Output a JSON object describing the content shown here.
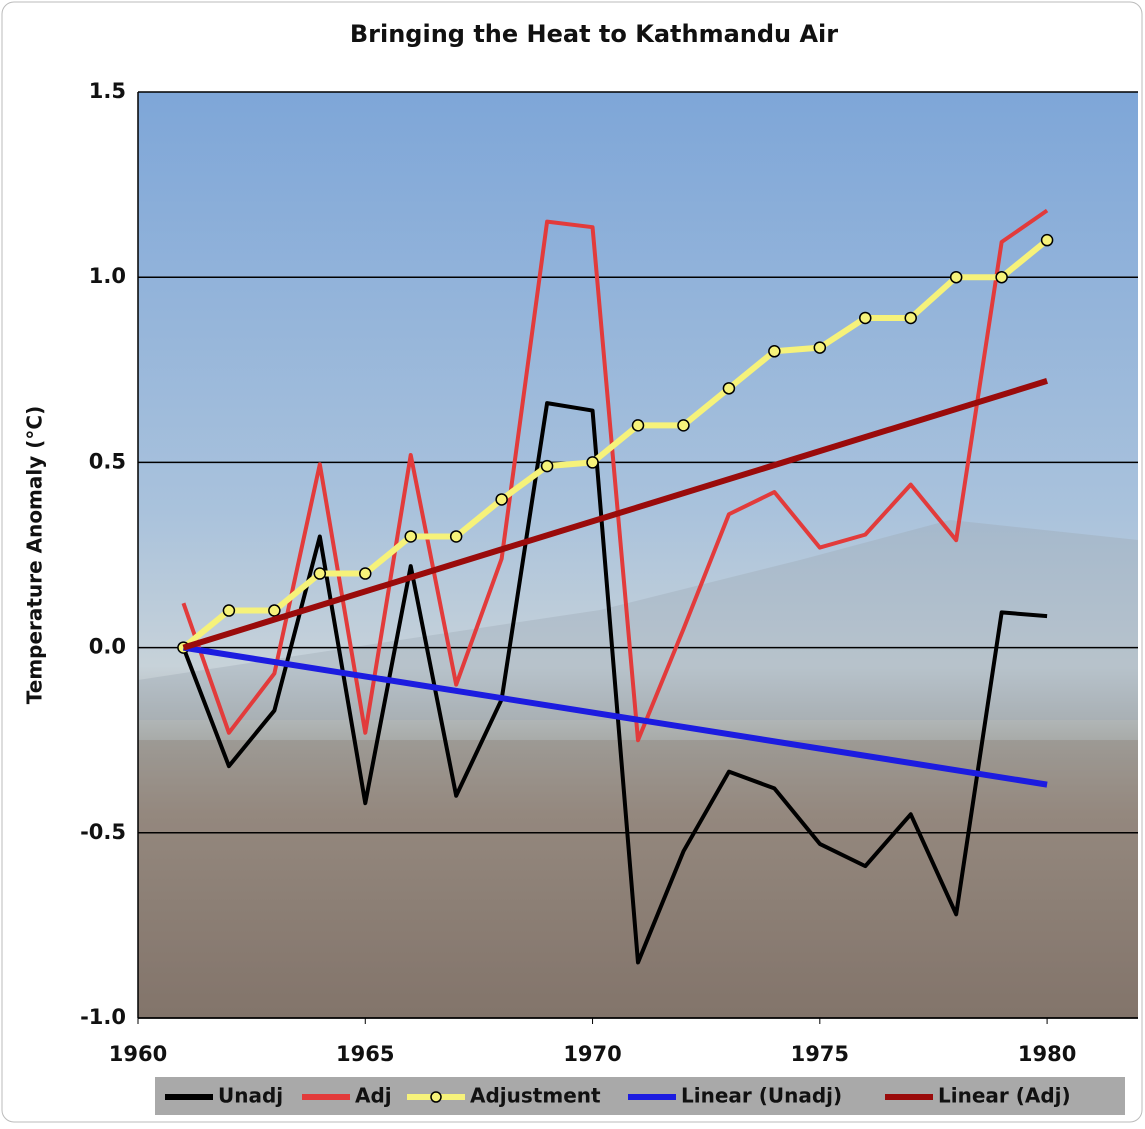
{
  "chart_data": {
    "type": "line",
    "title": "Bringing the Heat to Kathmandu Air",
    "y_label": "Temperature Anomaly (°C)",
    "x": [
      1961,
      1962,
      1963,
      1964,
      1965,
      1966,
      1967,
      1968,
      1969,
      1970,
      1971,
      1972,
      1973,
      1974,
      1975,
      1976,
      1977,
      1978,
      1979,
      1980
    ],
    "series": [
      {
        "name": "Unadj",
        "color": "#000000",
        "values": [
          0,
          -0.32,
          -0.17,
          0.3,
          -0.42,
          0.22,
          -0.4,
          -0.14,
          0.66,
          0.64,
          -0.85,
          -0.55,
          -0.335,
          -0.38,
          -0.53,
          -0.59,
          -0.45,
          -0.72,
          0.095,
          0.085
        ]
      },
      {
        "name": "Adj",
        "color": "#e23b3b",
        "values": [
          0.12,
          -0.23,
          -0.07,
          0.495,
          -0.23,
          0.52,
          -0.1,
          0.24,
          1.15,
          1.135,
          -0.25,
          0.05,
          0.36,
          0.42,
          0.27,
          0.305,
          0.44,
          0.29,
          1.095,
          1.18
        ]
      },
      {
        "name": "Adjustment",
        "color": "#f6f27a",
        "marker": "circle",
        "values": [
          0,
          0.1,
          0.1,
          0.2,
          0.2,
          0.3,
          0.3,
          0.4,
          0.49,
          0.5,
          0.6,
          0.6,
          0.7,
          0.8,
          0.81,
          0.89,
          0.89,
          1.0,
          1.0,
          1.1
        ]
      },
      {
        "name": "Linear (Unadj)",
        "color": "#1c1ce0",
        "x": [
          1961,
          1980
        ],
        "values": [
          0,
          -0.37
        ]
      },
      {
        "name": "Linear (Adj)",
        "color": "#9a0b0b",
        "x": [
          1961,
          1980
        ],
        "values": [
          0,
          0.72
        ]
      }
    ],
    "xlim": [
      1960,
      1982
    ],
    "xticks": [
      1960,
      1965,
      1970,
      1975,
      1980
    ],
    "ylim": [
      -1,
      1.5
    ],
    "yticks": [
      {
        "value": -1,
        "label": "-1.0"
      },
      -0.5,
      {
        "value": 0,
        "label": "0.0"
      },
      0.5,
      {
        "value": 1,
        "label": "1.0"
      },
      1.5
    ],
    "grid": true,
    "legend": "bottom"
  }
}
